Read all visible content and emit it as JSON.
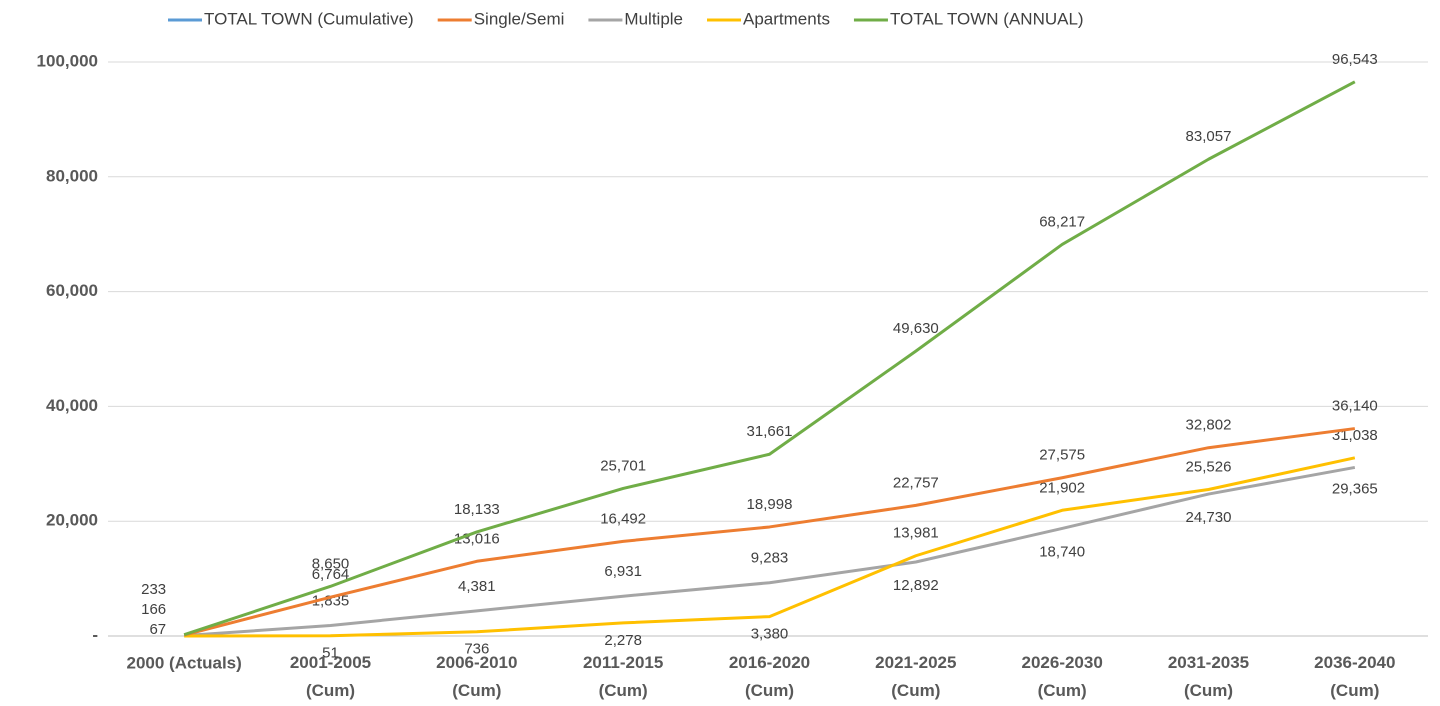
{
  "chart_data": {
    "type": "line",
    "categories": [
      "2000 (Actuals)",
      "2001-2005 (Cum)",
      "2006-2010 (Cum)",
      "2011-2015 (Cum)",
      "2016-2020 (Cum)",
      "2021-2025 (Cum)",
      "2026-2030 (Cum)",
      "2031-2035 (Cum)",
      "2036-2040 (Cum)"
    ],
    "series": [
      {
        "name": "TOTAL TOWN  (Cumulative)",
        "color": "#5b9bd5",
        "values": [
          null,
          null,
          null,
          null,
          null,
          null,
          null,
          null,
          null
        ]
      },
      {
        "name": "Single/Semi",
        "color": "#ed7d31",
        "values": [
          166,
          6764,
          13016,
          16492,
          18998,
          22757,
          27575,
          32802,
          36140
        ],
        "value_labels": [
          "166",
          "6,764",
          "13,016",
          "16,492",
          "18,998",
          "22,757",
          "27,575",
          "32,802",
          "36,140"
        ]
      },
      {
        "name": "Multiple",
        "color": "#a5a5a5",
        "values": [
          67,
          1835,
          4381,
          6931,
          9283,
          12892,
          18740,
          24730,
          29365
        ],
        "value_labels": [
          "67",
          "1,835",
          "4,381",
          "6,931",
          "9,283",
          "12,892",
          "18,740",
          "24,730",
          "29,365"
        ]
      },
      {
        "name": "Apartments",
        "color": "#ffc000",
        "values": [
          0,
          51,
          736,
          2278,
          3380,
          13981,
          21902,
          25526,
          31038
        ],
        "value_labels": [
          null,
          "51",
          "736",
          "2,278",
          "3,380",
          "13,981",
          "21,902",
          "25,526",
          "31,038"
        ]
      },
      {
        "name": "TOTAL TOWN (ANNUAL)",
        "color": "#70ad47",
        "values": [
          233,
          8650,
          18133,
          25701,
          31661,
          49630,
          68217,
          83057,
          96543
        ],
        "value_labels": [
          "233",
          "8,650",
          "18,133",
          "25,701",
          "31,661",
          "49,630",
          "68,217",
          "83,057",
          "96,543"
        ]
      }
    ],
    "ylim": [
      0,
      100000
    ],
    "yticks": [
      {
        "value": 0,
        "label": "-"
      },
      {
        "value": 20000,
        "label": "20,000"
      },
      {
        "value": 40000,
        "label": "40,000"
      },
      {
        "value": 60000,
        "label": "60,000"
      },
      {
        "value": 80000,
        "label": "80,000"
      },
      {
        "value": 100000,
        "label": "100,000"
      }
    ],
    "grid": true,
    "legend": "top"
  }
}
